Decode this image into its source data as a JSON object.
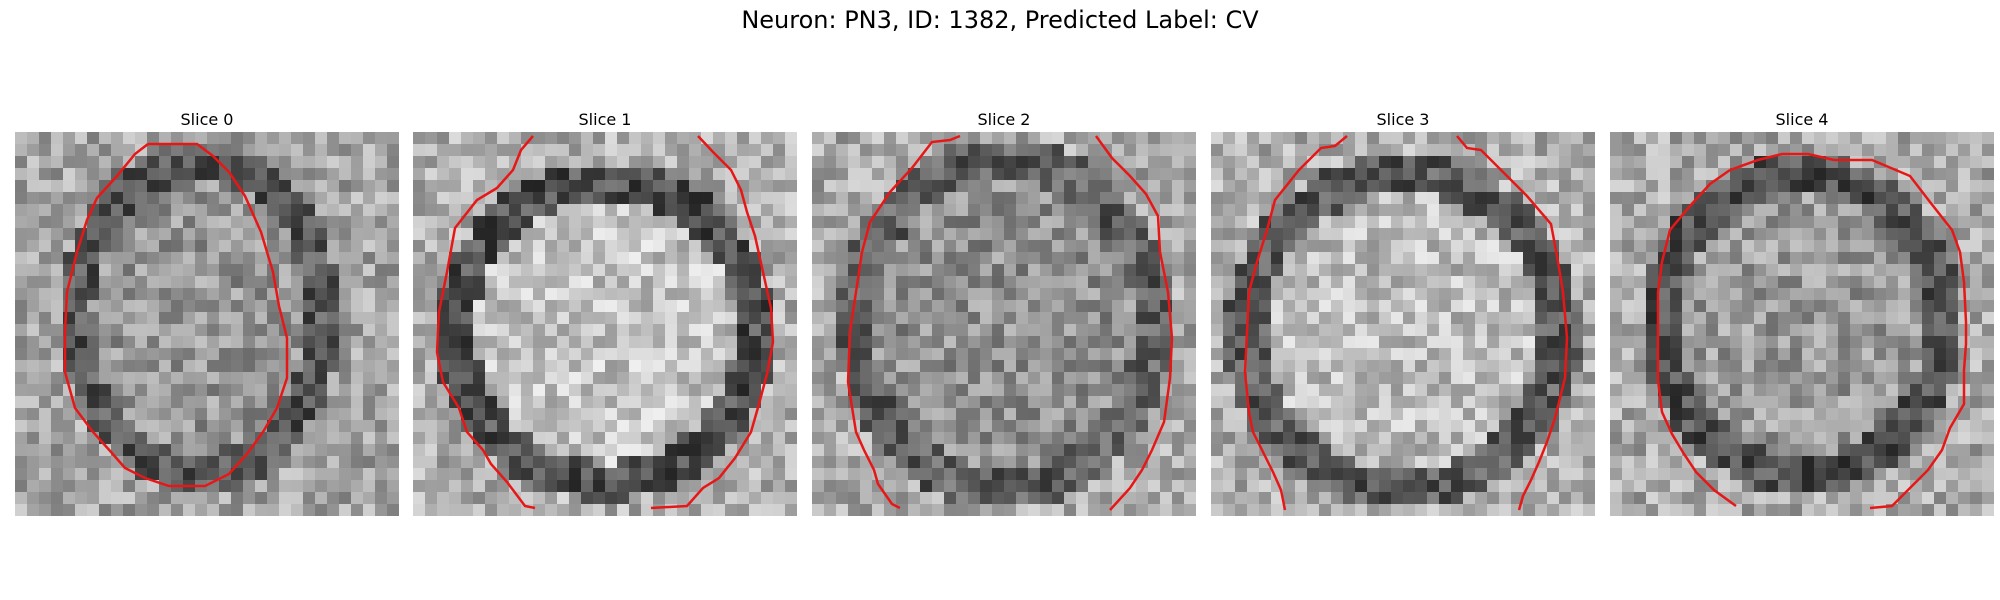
{
  "figure": {
    "title": "Neuron: PN3, ID: 1382, Predicted Label: CV"
  },
  "contour_color": "#e81717",
  "panels": [
    {
      "title": "Slice 0"
    },
    {
      "title": "Slice 1"
    },
    {
      "title": "Slice 2"
    },
    {
      "title": "Slice 3"
    },
    {
      "title": "Slice 4"
    }
  ]
}
